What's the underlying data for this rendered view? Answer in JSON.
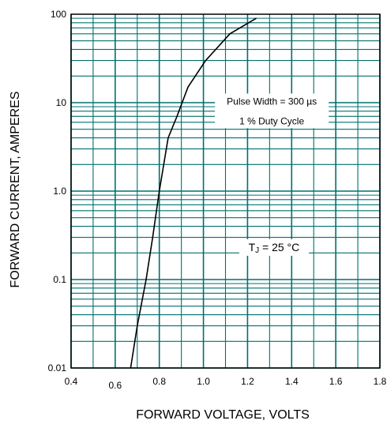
{
  "chart_data": {
    "type": "line",
    "title": "",
    "xlabel": "FORWARD VOLTAGE, VOLTS",
    "ylabel": "FORWARD CURRENT, AMPERES",
    "x_scale": "linear",
    "y_scale": "log",
    "xlim": [
      0.4,
      1.8
    ],
    "ylim": [
      0.01,
      100
    ],
    "x_ticks": [
      "0.4",
      "0.6",
      "0.8",
      "1.0",
      "1.2",
      "1.4",
      "1.6",
      "1.8"
    ],
    "y_ticks": [
      "0.01",
      "0.1",
      "1.0",
      "10",
      "100"
    ],
    "grid": true,
    "grid_color": "#00706f",
    "line_color": "#000000",
    "series": [
      {
        "x": [
          0.67,
          0.7,
          0.74,
          0.77,
          0.8,
          0.84,
          0.88,
          0.93,
          1.01,
          1.12,
          1.24
        ],
        "y": [
          0.01,
          0.03,
          0.1,
          0.3,
          1.0,
          4.0,
          7.0,
          15,
          30,
          60,
          90
        ]
      }
    ],
    "annotations": [
      {
        "text": "Pulse Width = 300 µs",
        "x": 1.31,
        "y": 9.5
      },
      {
        "text": "1 % Duty Cycle",
        "x": 1.31,
        "y": 5.7
      },
      {
        "text_main": "T",
        "text_sub": "J",
        "text_rest": " = 25 °C",
        "x": 1.32,
        "y": 0.21
      }
    ]
  }
}
